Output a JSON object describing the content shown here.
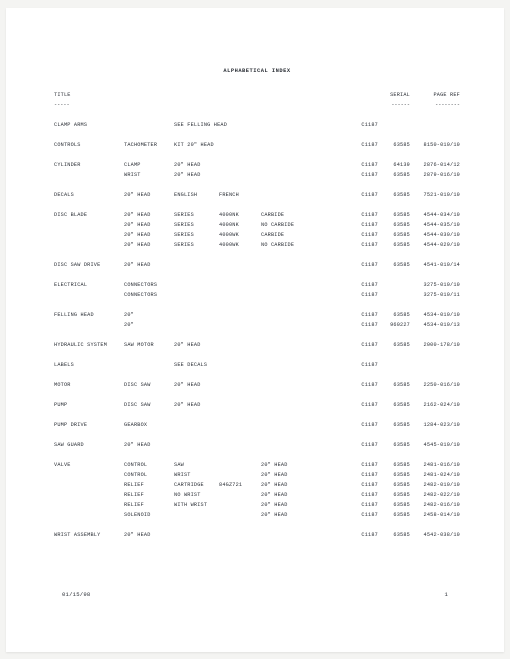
{
  "heading": "ALPHABETICAL INDEX",
  "header": {
    "title": "TITLE",
    "serial": "SERIAL",
    "pageref": "PAGE REF"
  },
  "dashes": {
    "title": "-----",
    "serial": "------",
    "pageref": "--------"
  },
  "footer": {
    "date": "01/15/98",
    "page": "1"
  },
  "rows": [
    {
      "gap": true,
      "title": "CLAMP ARMS",
      "sub1": "",
      "sub2span": "SEE FELLING HEAD",
      "ref": "C1187",
      "serial": "",
      "pageref": ""
    },
    {
      "gap": true,
      "title": "CONTROLS",
      "sub1": "TACHOMETER",
      "sub2span": "KIT 20\" HEAD",
      "ref": "C1187",
      "serial": "63585",
      "pageref": "8150-010/10"
    },
    {
      "gap": true,
      "title": "CYLINDER",
      "sub1": "CLAMP",
      "sub2": "20\" HEAD",
      "sub3": "",
      "sub4": "",
      "ref": "C1187",
      "serial": "64139",
      "pageref": "2876-014/12"
    },
    {
      "title": "",
      "sub1": "WRIST",
      "sub2": "20\" HEAD",
      "sub3": "",
      "sub4": "",
      "ref": "C1187",
      "serial": "63585",
      "pageref": "2879-016/10"
    },
    {
      "gap": true,
      "title": "DECALS",
      "sub1": "20\" HEAD",
      "sub2": "ENGLISH",
      "sub3": "FRENCH",
      "sub4": "",
      "ref": "C1187",
      "serial": "63585",
      "pageref": "7521-010/10"
    },
    {
      "gap": true,
      "title": "DISC BLADE",
      "sub1": "20\" HEAD",
      "sub2": "SERIES",
      "sub3": "4000NK",
      "sub4": "CARBIDE",
      "ref": "C1187",
      "serial": "63585",
      "pageref": "4544-034/10"
    },
    {
      "title": "",
      "sub1": "20\" HEAD",
      "sub2": "SERIES",
      "sub3": "4000NK",
      "sub4": "NO CARBIDE",
      "ref": "C1187",
      "serial": "63585",
      "pageref": "4544-035/10"
    },
    {
      "title": "",
      "sub1": "20\" HEAD",
      "sub2": "SERIES",
      "sub3": "4000WK",
      "sub4": "CARBIDE",
      "ref": "C1187",
      "serial": "63585",
      "pageref": "4544-030/10"
    },
    {
      "title": "",
      "sub1": "20\" HEAD",
      "sub2": "SERIES",
      "sub3": "4000WK",
      "sub4": "NO CARBIDE",
      "ref": "C1187",
      "serial": "63585",
      "pageref": "4544-029/10"
    },
    {
      "gap": true,
      "title": "DISC SAW DRIVE",
      "sub1": "20\" HEAD",
      "sub2": "",
      "sub3": "",
      "sub4": "",
      "ref": "C1187",
      "serial": "63585",
      "pageref": "4541-010/14"
    },
    {
      "gap": true,
      "title": "ELECTRICAL",
      "sub1": "CONNECTORS",
      "sub2": "",
      "sub3": "",
      "sub4": "",
      "ref": "C1187",
      "serial": "",
      "pageref": "3275-010/10"
    },
    {
      "title": "",
      "sub1": "CONNECTORS",
      "sub2": "",
      "sub3": "",
      "sub4": "",
      "ref": "C1187",
      "serial": "",
      "pageref": "3275-010/11"
    },
    {
      "gap": true,
      "title": "FELLING HEAD",
      "sub1": "20\"",
      "sub2": "",
      "sub3": "",
      "sub4": "",
      "ref": "C1187",
      "serial": "63585",
      "pageref": "4534-010/10"
    },
    {
      "title": "",
      "sub1": "20\"",
      "sub2": "",
      "sub3": "",
      "sub4": "",
      "ref": "C1187",
      "serial": "960227",
      "pageref": "4534-010/13"
    },
    {
      "gap": true,
      "title": "HYDRAULIC SYSTEM",
      "sub1": "SAW MOTOR",
      "sub2": "20\" HEAD",
      "sub3": "",
      "sub4": "",
      "ref": "C1187",
      "serial": "63585",
      "pageref": "2000-178/10"
    },
    {
      "gap": true,
      "title": "LABELS",
      "sub1": "",
      "sub2": "SEE DECALS",
      "sub3": "",
      "sub4": "",
      "ref": "C1187",
      "serial": "",
      "pageref": ""
    },
    {
      "gap": true,
      "title": "MOTOR",
      "sub1": "DISC SAW",
      "sub2": "20\" HEAD",
      "sub3": "",
      "sub4": "",
      "ref": "C1187",
      "serial": "63585",
      "pageref": "2250-016/10"
    },
    {
      "gap": true,
      "title": "PUMP",
      "sub1": "DISC SAW",
      "sub2": "20\" HEAD",
      "sub3": "",
      "sub4": "",
      "ref": "C1187",
      "serial": "63585",
      "pageref": "2162-024/10"
    },
    {
      "gap": true,
      "title": "PUMP DRIVE",
      "sub1": "GEARBOX",
      "sub2": "",
      "sub3": "",
      "sub4": "",
      "ref": "C1187",
      "serial": "63585",
      "pageref": "1284-023/10"
    },
    {
      "gap": true,
      "title": "SAW GUARD",
      "sub1": "20\" HEAD",
      "sub2": "",
      "sub3": "",
      "sub4": "",
      "ref": "C1187",
      "serial": "63585",
      "pageref": "4545-010/10"
    },
    {
      "gap": true,
      "title": "VALVE",
      "sub1": "CONTROL",
      "sub2": "SAW",
      "sub3": "",
      "sub4": "20\" HEAD",
      "ref": "C1187",
      "serial": "63585",
      "pageref": "2481-016/10"
    },
    {
      "title": "",
      "sub1": "CONTROL",
      "sub2": "WRIST",
      "sub3": "",
      "sub4": "20\" HEAD",
      "ref": "C1187",
      "serial": "63585",
      "pageref": "2481-024/10"
    },
    {
      "title": "",
      "sub1": "RELIEF",
      "sub2": "CARTRIDGE",
      "sub3": "84GZ721",
      "sub4": "20\" HEAD",
      "ref": "C1187",
      "serial": "63585",
      "pageref": "2482-010/10"
    },
    {
      "title": "",
      "sub1": "RELIEF",
      "sub2": "NO WRIST",
      "sub3": "",
      "sub4": "20\" HEAD",
      "ref": "C1187",
      "serial": "63585",
      "pageref": "2482-022/10"
    },
    {
      "title": "",
      "sub1": "RELIEF",
      "sub2": "WITH WRIST",
      "sub3": "",
      "sub4": "20\" HEAD",
      "ref": "C1187",
      "serial": "63585",
      "pageref": "2482-016/10"
    },
    {
      "title": "",
      "sub1": "SOLENOID",
      "sub2": "",
      "sub3": "",
      "sub4": "20\" HEAD",
      "ref": "C1187",
      "serial": "63585",
      "pageref": "2458-014/10"
    },
    {
      "gap": true,
      "title": "WRIST ASSEMBLY",
      "sub1": "20\" HEAD",
      "sub2": "",
      "sub3": "",
      "sub4": "",
      "ref": "C1187",
      "serial": "63585",
      "pageref": "4542-038/10"
    }
  ]
}
